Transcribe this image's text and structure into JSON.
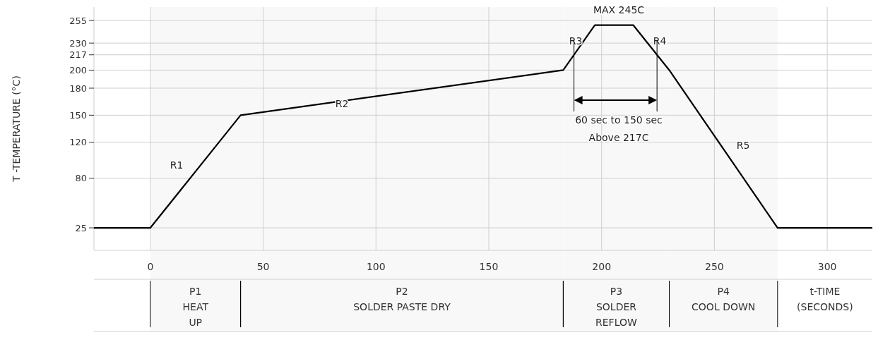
{
  "chart_data": {
    "type": "line",
    "ylabel": "T -TEMPERATURE (°C)",
    "xlabel": "t-TIME (SECONDS)",
    "series": [
      {
        "color": "#000000",
        "x": [
          -25,
          0,
          40,
          183,
          197,
          214,
          230,
          278,
          320
        ],
        "values": [
          25,
          25,
          150,
          200,
          250,
          250,
          200,
          25,
          25
        ]
      }
    ],
    "xlim": [
      -25,
      320
    ],
    "xticks": [
      0,
      50,
      100,
      150,
      200,
      250,
      300
    ],
    "ylim": [
      0,
      270
    ],
    "yticks": [
      25,
      80,
      120,
      150,
      180,
      200,
      217,
      230,
      255
    ],
    "grid": true,
    "marker": "none",
    "line_style": "solid",
    "bands": [
      {
        "axis": "x",
        "from": 0,
        "to": 40,
        "label": "P1\nHEAT\nUP",
        "color": "#f8f8f8"
      },
      {
        "axis": "x",
        "from": 40,
        "to": 183,
        "label": "P2\nSOLDER PASTE DRY",
        "color": "#f8f8f8"
      },
      {
        "axis": "x",
        "from": 183,
        "to": 230,
        "label": "P3\nSOLDER\nREFLOW",
        "color": "#f8f8f8"
      },
      {
        "axis": "x",
        "from": 230,
        "to": 278,
        "label": "P4\nCOOL DOWN",
        "color": "#f8f8f8"
      }
    ],
    "annotations": [
      "R1",
      "R2",
      "R3",
      "R4",
      "R5",
      "MAX 245C",
      "60 sec to 150 sec",
      "Above 217C"
    ]
  }
}
